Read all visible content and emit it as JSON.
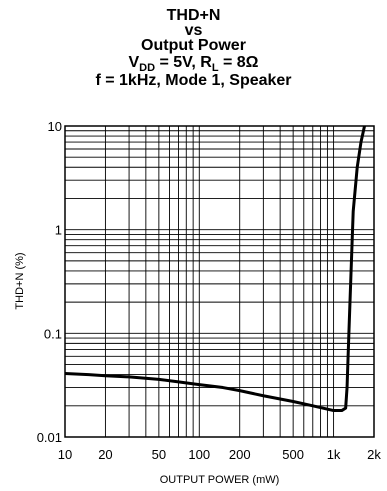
{
  "chart_data": {
    "type": "line",
    "title_lines": [
      "THD+N",
      "vs",
      "Output Power"
    ],
    "condition_line1": {
      "vdd_main": "V",
      "vdd_sub": "DD",
      "vdd_rest": " = 5V, R",
      "rl_sub": "L",
      "rl_rest": " = 8Ω"
    },
    "condition_line2": "f = 1kHz, Mode 1, Speaker",
    "xlabel": "OUTPUT POWER (mW)",
    "ylabel": "THD+N (%)",
    "xscale": "log",
    "yscale": "log",
    "xlim": [
      10,
      2000
    ],
    "ylim": [
      0.01,
      10
    ],
    "grid": true,
    "x_ticks": [
      {
        "v": 10,
        "label": "10"
      },
      {
        "v": 20,
        "label": "20"
      },
      {
        "v": 50,
        "label": "50"
      },
      {
        "v": 100,
        "label": "100"
      },
      {
        "v": 200,
        "label": "200"
      },
      {
        "v": 500,
        "label": "500"
      },
      {
        "v": 1000,
        "label": "1k"
      },
      {
        "v": 2000,
        "label": "2k"
      }
    ],
    "y_ticks": [
      {
        "v": 0.01,
        "label": "0.01"
      },
      {
        "v": 0.1,
        "label": "0.1"
      },
      {
        "v": 1,
        "label": "1"
      },
      {
        "v": 10,
        "label": "10"
      }
    ],
    "series": [
      {
        "color": "#000000",
        "x": [
          10,
          15,
          20,
          30,
          50,
          70,
          100,
          150,
          200,
          300,
          500,
          700,
          1000,
          1150,
          1230,
          1260,
          1300,
          1350,
          1400,
          1500,
          1600,
          1700
        ],
        "y": [
          0.041,
          0.04,
          0.039,
          0.038,
          0.036,
          0.034,
          0.032,
          0.03,
          0.028,
          0.025,
          0.022,
          0.02,
          0.018,
          0.018,
          0.019,
          0.03,
          0.1,
          0.4,
          1.5,
          4,
          7,
          10
        ]
      }
    ]
  }
}
